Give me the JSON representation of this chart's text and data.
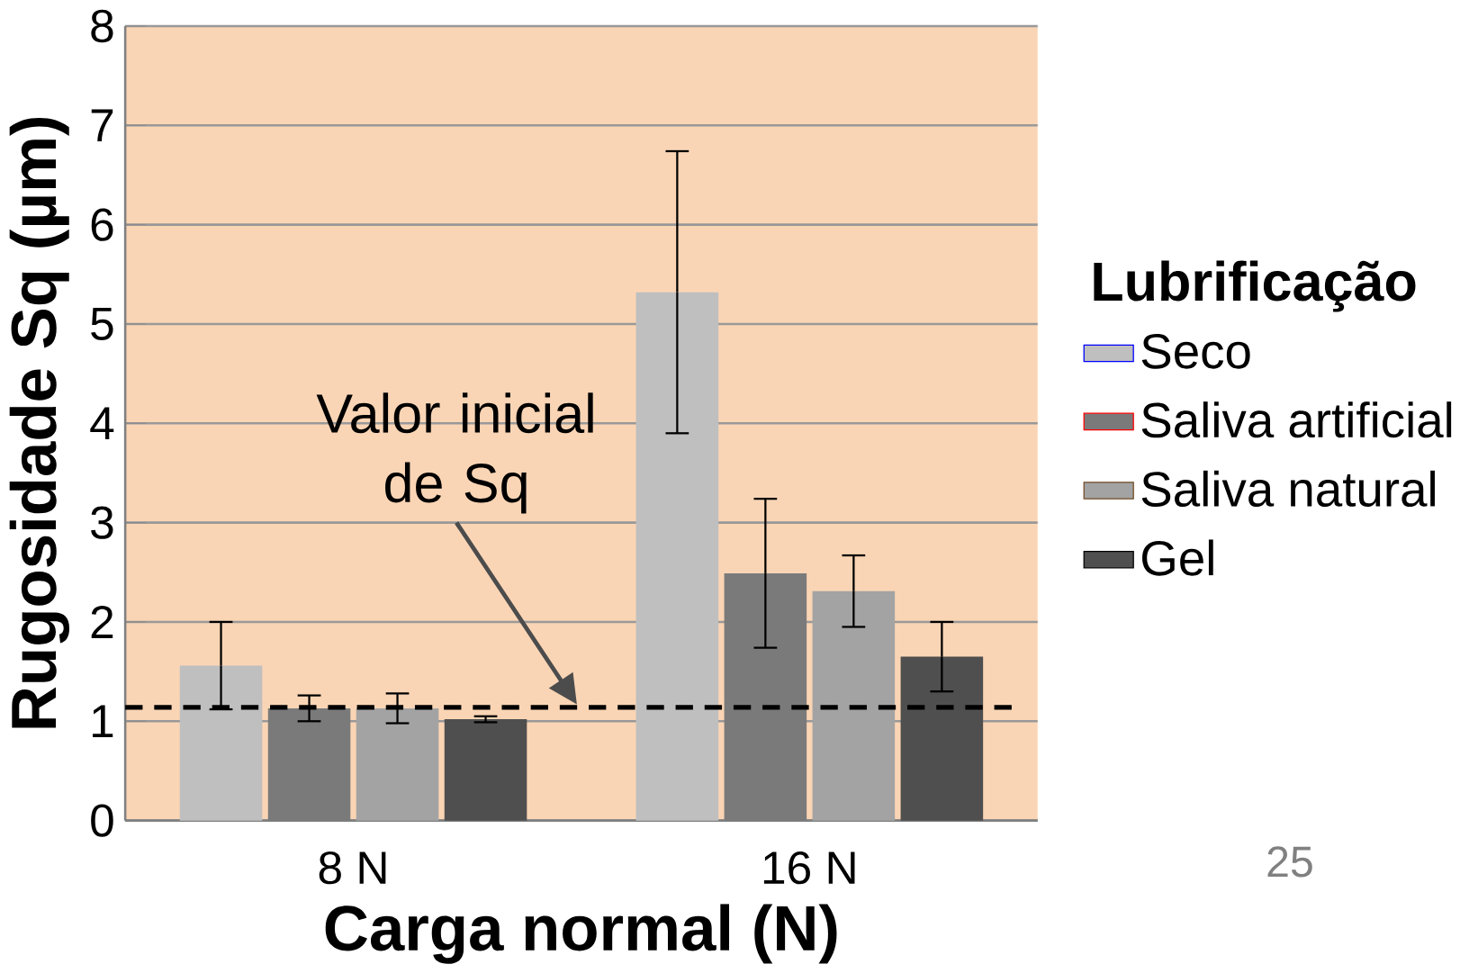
{
  "chart_data": {
    "type": "bar",
    "xlabel": "Carga normal (N)",
    "ylabel": "Rugosidade Sq (µm)",
    "legend_title": "Lubrificação",
    "categories": [
      "8 N",
      "16 N"
    ],
    "series": [
      {
        "name": "Seco",
        "color": "#bfbfbf",
        "values": [
          1.56,
          5.32
        ],
        "errors": [
          0.44,
          1.42
        ]
      },
      {
        "name": "Saliva artificial",
        "color": "#7a7a7a",
        "values": [
          1.13,
          2.49
        ],
        "errors": [
          0.13,
          0.75
        ]
      },
      {
        "name": "Saliva natural",
        "color": "#a3a3a3",
        "values": [
          1.13,
          2.31
        ],
        "errors": [
          0.15,
          0.36
        ]
      },
      {
        "name": "Gel",
        "color": "#4f4f4f",
        "values": [
          1.02,
          1.65
        ],
        "errors": [
          0.03,
          0.35
        ]
      }
    ],
    "ylim": [
      0,
      8
    ],
    "yticks": [
      0,
      1,
      2,
      3,
      4,
      5,
      6,
      7,
      8
    ],
    "grid": "y",
    "legend": "right",
    "ref_lines": [
      {
        "axis": "y",
        "value": 1.14,
        "color": "#000000",
        "line_style": "dashed"
      }
    ],
    "annotations": [
      "Valor inicial de Sq",
      "25"
    ]
  }
}
